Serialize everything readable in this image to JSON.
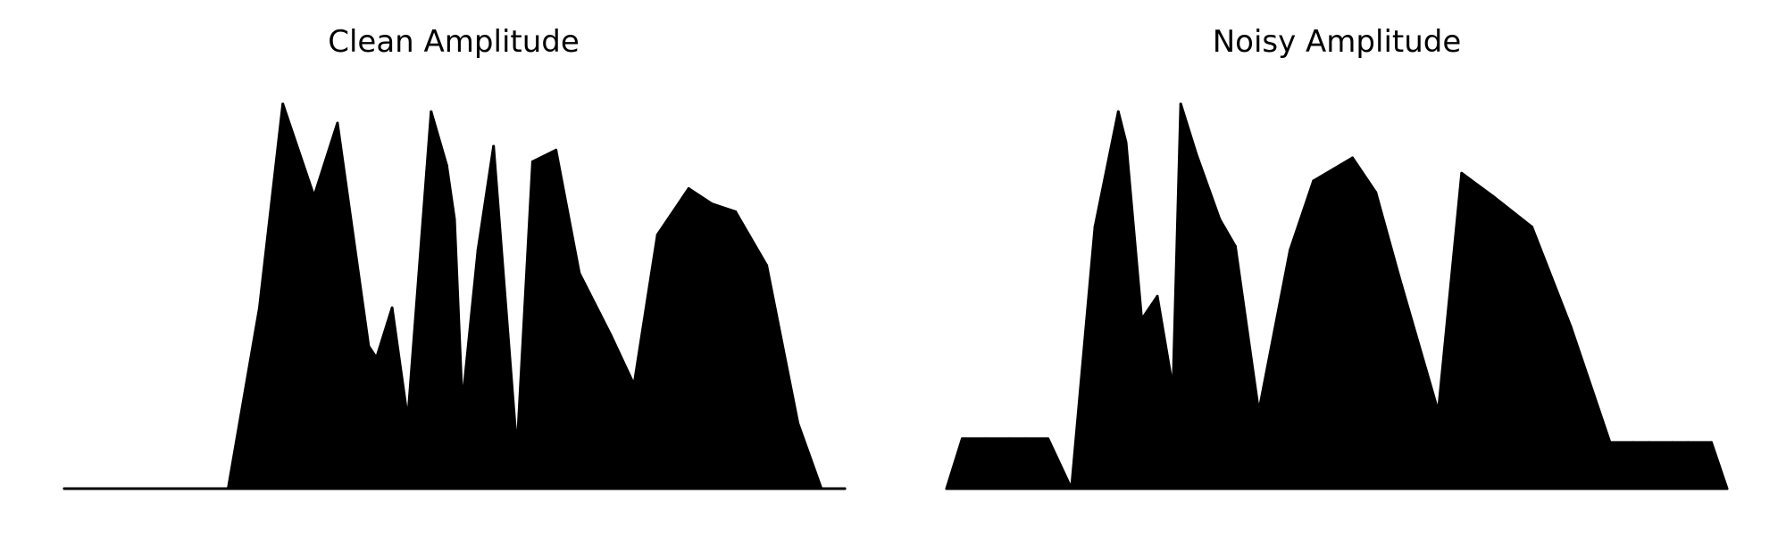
{
  "figure": {
    "line_color": "#000000",
    "background": "#ffffff"
  },
  "chart_data": [
    {
      "type": "area",
      "title": "Clean Amplitude",
      "xlabel": "",
      "ylabel": "",
      "axes_visible": false,
      "grid": false,
      "legend": "none",
      "x": [
        0,
        14,
        18,
        21,
        25,
        28,
        32,
        35,
        39,
        40,
        42,
        44,
        47,
        49,
        50,
        51,
        53,
        55,
        58,
        60,
        63,
        66,
        70,
        73,
        76,
        80,
        83,
        86,
        90,
        94,
        97,
        100
      ],
      "ylim": [
        0,
        1.05
      ],
      "envelopes": [
        {
          "name": "",
          "values": [
            0.0,
            0.0,
            0.0,
            0.0,
            0.47,
            1.0,
            0.76,
            0.95,
            0.37,
            0.34,
            0.47,
            0.18,
            0.98,
            0.84,
            0.7,
            0.22,
            0.62,
            0.89,
            0.1,
            0.85,
            0.88,
            0.56,
            0.4,
            0.27,
            0.66,
            0.78,
            0.74,
            0.72,
            0.58,
            0.17,
            0.0,
            0.0
          ]
        }
      ]
    },
    {
      "type": "area",
      "title": "Noisy Amplitude",
      "xlabel": "",
      "ylabel": "",
      "axes_visible": false,
      "grid": false,
      "legend": "none",
      "x": [
        0,
        2,
        5,
        8,
        10,
        13,
        16,
        19,
        22,
        23,
        25,
        27,
        29,
        30,
        32,
        35,
        37,
        40,
        44,
        47,
        52,
        55,
        58,
        63,
        66,
        70,
        75,
        80,
        85,
        88,
        90,
        93,
        95,
        98,
        100
      ],
      "ylim": [
        0,
        1.05
      ],
      "envelopes": [
        {
          "name": "",
          "values": [
            0.0,
            0.13,
            0.13,
            0.13,
            0.13,
            0.13,
            0.0,
            0.68,
            0.98,
            0.9,
            0.44,
            0.5,
            0.26,
            1.0,
            0.87,
            0.7,
            0.63,
            0.2,
            0.62,
            0.8,
            0.86,
            0.77,
            0.55,
            0.2,
            0.82,
            0.76,
            0.68,
            0.42,
            0.12,
            0.12,
            0.12,
            0.12,
            0.12,
            0.12,
            0.0
          ]
        }
      ]
    }
  ]
}
